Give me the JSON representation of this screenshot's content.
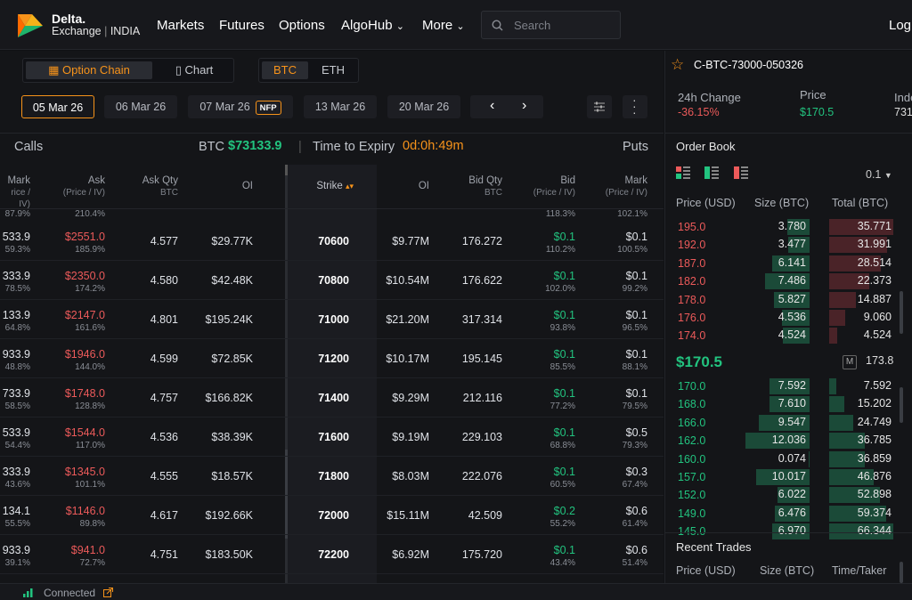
{
  "brand": {
    "name_line1": "Delta.",
    "name_line2": "Exchange",
    "region": "INDIA"
  },
  "nav": {
    "markets": "Markets",
    "futures": "Futures",
    "options": "Options",
    "algohub": "AlgoHub",
    "more": "More",
    "login": "Log"
  },
  "search": {
    "placeholder": "Search"
  },
  "view_toggle": {
    "option_chain": "Option Chain",
    "chart": "Chart"
  },
  "asset_toggle": {
    "btc": "BTC",
    "eth": "ETH"
  },
  "expiries": [
    {
      "label": "05 Mar 26",
      "selected": true
    },
    {
      "label": "06 Mar 26"
    },
    {
      "label": "07 Mar 26",
      "badge": "NFP"
    },
    {
      "label": "13 Mar 26"
    },
    {
      "label": "20 Mar 26"
    }
  ],
  "chain_header": {
    "calls": "Calls",
    "underlying_label": "BTC",
    "underlying_price": "$73133.9",
    "separator": "|",
    "expiry_label": "Time to Expiry",
    "expiry_value": "0d:0h:49m",
    "puts": "Puts"
  },
  "columns": {
    "call_mark": "Mark",
    "call_mark_sub": "rice / IV)",
    "ask": "Ask",
    "ask_sub": "(Price / IV)",
    "ask_qty": "Ask Qty",
    "ask_qty_sub": "BTC",
    "call_oi": "OI",
    "strike": "Strike",
    "put_oi": "OI",
    "bid_qty": "Bid Qty",
    "bid_qty_sub": "BTC",
    "bid": "Bid",
    "bid_sub": "(Price / IV)",
    "put_mark": "Mark",
    "put_mark_sub": "(Price / IV)"
  },
  "partial_row": {
    "call_mark_iv": "87.9%",
    "ask_iv": "210.4%",
    "bid_iv": "118.3%",
    "put_mark_iv": "102.1%"
  },
  "rows": [
    {
      "call_mark": "533.9",
      "call_mark_iv": "59.3%",
      "ask": "$2551.0",
      "ask_iv": "185.9%",
      "ask_qty": "4.577",
      "call_oi": "$29.77K",
      "strike": "70600",
      "put_oi": "$9.77M",
      "bid_qty": "176.272",
      "bid": "$0.1",
      "bid_iv": "110.2%",
      "put_mark": "$0.1",
      "put_mark_iv": "100.5%"
    },
    {
      "call_mark": "333.9",
      "call_mark_iv": "78.5%",
      "ask": "$2350.0",
      "ask_iv": "174.2%",
      "ask_qty": "4.580",
      "call_oi": "$42.48K",
      "strike": "70800",
      "put_oi": "$10.54M",
      "bid_qty": "176.622",
      "bid": "$0.1",
      "bid_iv": "102.0%",
      "put_mark": "$0.1",
      "put_mark_iv": "99.2%"
    },
    {
      "call_mark": "133.9",
      "call_mark_iv": "64.8%",
      "ask": "$2147.0",
      "ask_iv": "161.6%",
      "ask_qty": "4.801",
      "call_oi": "$195.24K",
      "strike": "71000",
      "put_oi": "$21.20M",
      "bid_qty": "317.314",
      "bid": "$0.1",
      "bid_iv": "93.8%",
      "put_mark": "$0.1",
      "put_mark_iv": "96.5%"
    },
    {
      "call_mark": "933.9",
      "call_mark_iv": "48.8%",
      "ask": "$1946.0",
      "ask_iv": "144.0%",
      "ask_qty": "4.599",
      "call_oi": "$72.85K",
      "strike": "71200",
      "put_oi": "$10.17M",
      "bid_qty": "195.145",
      "bid": "$0.1",
      "bid_iv": "85.5%",
      "put_mark": "$0.1",
      "put_mark_iv": "88.1%"
    },
    {
      "call_mark": "733.9",
      "call_mark_iv": "58.5%",
      "ask": "$1748.0",
      "ask_iv": "128.8%",
      "ask_qty": "4.757",
      "call_oi": "$166.82K",
      "strike": "71400",
      "put_oi": "$9.29M",
      "bid_qty": "212.116",
      "bid": "$0.1",
      "bid_iv": "77.2%",
      "put_mark": "$0.1",
      "put_mark_iv": "79.5%"
    },
    {
      "call_mark": "533.9",
      "call_mark_iv": "54.4%",
      "ask": "$1544.0",
      "ask_iv": "117.0%",
      "ask_qty": "4.536",
      "call_oi": "$38.39K",
      "strike": "71600",
      "put_oi": "$9.19M",
      "bid_qty": "229.103",
      "bid": "$0.1",
      "bid_iv": "68.8%",
      "put_mark": "$0.5",
      "put_mark_iv": "79.3%"
    },
    {
      "call_mark": "333.9",
      "call_mark_iv": "43.6%",
      "ask": "$1345.0",
      "ask_iv": "101.1%",
      "ask_qty": "4.555",
      "call_oi": "$18.57K",
      "strike": "71800",
      "put_oi": "$8.03M",
      "bid_qty": "222.076",
      "bid": "$0.1",
      "bid_iv": "60.5%",
      "put_mark": "$0.3",
      "put_mark_iv": "67.4%"
    },
    {
      "call_mark": "134.1",
      "call_mark_iv": "55.5%",
      "ask": "$1146.0",
      "ask_iv": "89.8%",
      "ask_qty": "4.617",
      "call_oi": "$192.66K",
      "strike": "72000",
      "put_oi": "$15.11M",
      "bid_qty": "42.509",
      "bid": "$0.2",
      "bid_iv": "55.2%",
      "put_mark": "$0.6",
      "put_mark_iv": "61.4%"
    },
    {
      "call_mark": "933.9",
      "call_mark_iv": "39.1%",
      "ask": "$941.0",
      "ask_iv": "72.7%",
      "ask_qty": "4.751",
      "call_oi": "$183.50K",
      "strike": "72200",
      "put_oi": "$6.92M",
      "bid_qty": "175.720",
      "bid": "$0.1",
      "bid_iv": "43.4%",
      "put_mark": "$0.6",
      "put_mark_iv": "51.4%"
    }
  ],
  "instrument": {
    "symbol": "C-BTC-73000-050326",
    "change_label": "24h Change",
    "change_value": "-36.15%",
    "price_label": "Price",
    "price_value": "$170.5",
    "index_label": "Inde",
    "index_value": "731"
  },
  "orderbook": {
    "title": "Order Book",
    "tick": "0.1",
    "headers": {
      "price": "Price (USD)",
      "size": "Size (BTC)",
      "total": "Total (BTC)"
    },
    "asks": [
      {
        "price": "195.0",
        "size": "3.780",
        "total": "35.771",
        "total_fill": 1.0,
        "size_fill": 0.35
      },
      {
        "price": "192.0",
        "size": "3.477",
        "total": "31.991",
        "total_fill": 0.9,
        "size_fill": 0.33
      },
      {
        "price": "187.0",
        "size": "6.141",
        "total": "28.514",
        "total_fill": 0.8,
        "size_fill": 0.58
      },
      {
        "price": "182.0",
        "size": "7.486",
        "total": "22.373",
        "total_fill": 0.63,
        "size_fill": 0.7
      },
      {
        "price": "178.0",
        "size": "5.827",
        "total": "14.887",
        "total_fill": 0.42,
        "size_fill": 0.55
      },
      {
        "price": "176.0",
        "size": "4.536",
        "total": "9.060",
        "total_fill": 0.25,
        "size_fill": 0.43
      },
      {
        "price": "174.0",
        "size": "4.524",
        "total": "4.524",
        "total_fill": 0.13,
        "size_fill": 0.42
      }
    ],
    "mid_price": "$170.5",
    "mark_badge": "M",
    "mark_price": "173.8",
    "bids": [
      {
        "price": "170.0",
        "size": "7.592",
        "total": "7.592",
        "total_fill": 0.11,
        "size_fill": 0.63
      },
      {
        "price": "168.0",
        "size": "7.610",
        "total": "15.202",
        "total_fill": 0.23,
        "size_fill": 0.63
      },
      {
        "price": "166.0",
        "size": "9.547",
        "total": "24.749",
        "total_fill": 0.37,
        "size_fill": 0.79
      },
      {
        "price": "162.0",
        "size": "12.036",
        "total": "36.785",
        "total_fill": 0.55,
        "size_fill": 1.0
      },
      {
        "price": "160.0",
        "size": "0.074",
        "total": "36.859",
        "total_fill": 0.56,
        "size_fill": 0.01
      },
      {
        "price": "157.0",
        "size": "10.017",
        "total": "46.876",
        "total_fill": 0.7,
        "size_fill": 0.83
      },
      {
        "price": "152.0",
        "size": "6.022",
        "total": "52.898",
        "total_fill": 0.79,
        "size_fill": 0.5
      },
      {
        "price": "149.0",
        "size": "6.476",
        "total": "59.374",
        "total_fill": 0.89,
        "size_fill": 0.54
      },
      {
        "price": "145.0",
        "size": "6.970",
        "total": "66.344",
        "total_fill": 1.0,
        "size_fill": 0.58
      }
    ]
  },
  "recent_trades": {
    "title": "Recent Trades",
    "headers": {
      "price": "Price (USD)",
      "size": "Size (BTC)",
      "time": "Time/Taker"
    }
  },
  "status": {
    "label": "Connected"
  },
  "colors": {
    "accent": "#f7931a",
    "green": "#22c37f",
    "red": "#ec5a5a",
    "bg": "#141518"
  }
}
